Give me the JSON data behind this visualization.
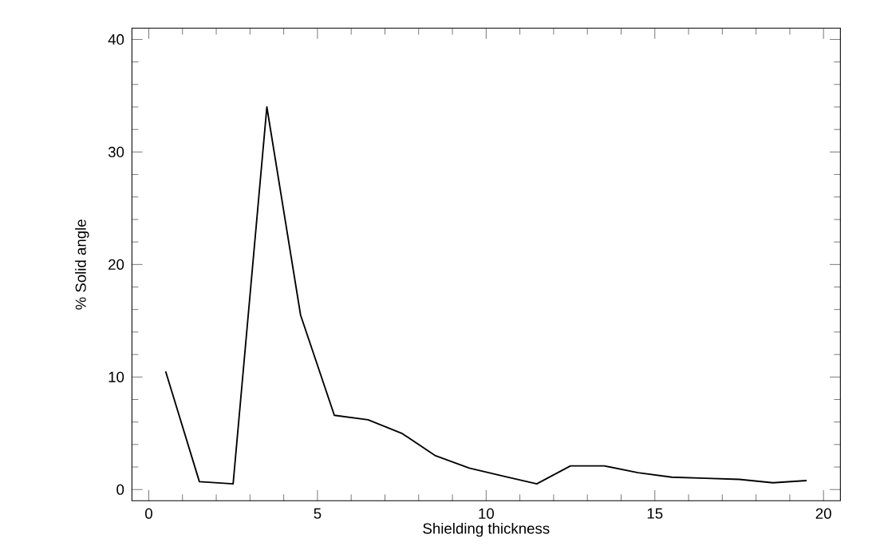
{
  "chart_data": {
    "type": "line",
    "xlabel": "Shielding thickness",
    "ylabel": "% Solid angle",
    "x": [
      0.5,
      1.5,
      2.5,
      3.5,
      4.5,
      5.5,
      6.5,
      7.5,
      8.5,
      9.5,
      10.5,
      11.5,
      12.5,
      13.5,
      14.5,
      15.5,
      16.5,
      17.5,
      18.5,
      19.5
    ],
    "values": [
      10.5,
      0.7,
      0.5,
      34,
      15.5,
      6.6,
      6.2,
      5,
      3,
      1.9,
      1.2,
      0.5,
      2.1,
      2.1,
      1.5,
      1.1,
      1.0,
      0.9,
      0.6,
      0.8
    ],
    "color": "#000000",
    "xlim": [
      -0.5,
      20.5
    ],
    "ylim": [
      -1,
      41
    ],
    "xticks": [
      0,
      5,
      10,
      15,
      20
    ],
    "yticks": [
      0,
      10,
      20,
      30,
      40
    ],
    "grid": false,
    "marker": "none",
    "line_style": "solid"
  }
}
